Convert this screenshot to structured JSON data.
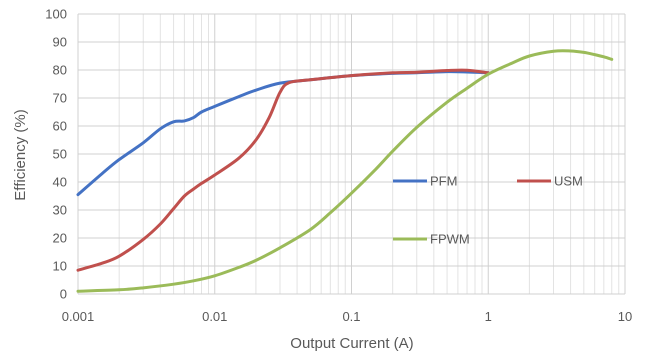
{
  "chart_data": {
    "type": "line",
    "title": "",
    "xlabel": "Output Current (A)",
    "ylabel": "Efficiency (%)",
    "xscale": "log",
    "xlim": [
      0.001,
      10
    ],
    "ylim": [
      0,
      100
    ],
    "x_ticks": [
      {
        "value": 0.001,
        "label": "0.001"
      },
      {
        "value": 0.01,
        "label": "0.01"
      },
      {
        "value": 0.1,
        "label": "0.1"
      },
      {
        "value": 1,
        "label": "1"
      },
      {
        "value": 10,
        "label": "10"
      }
    ],
    "y_ticks": [
      {
        "value": 0,
        "label": "0"
      },
      {
        "value": 10,
        "label": "10"
      },
      {
        "value": 20,
        "label": "20"
      },
      {
        "value": 30,
        "label": "30"
      },
      {
        "value": 40,
        "label": "40"
      },
      {
        "value": 50,
        "label": "50"
      },
      {
        "value": 60,
        "label": "60"
      },
      {
        "value": 70,
        "label": "70"
      },
      {
        "value": 80,
        "label": "80"
      },
      {
        "value": 90,
        "label": "90"
      },
      {
        "value": 100,
        "label": "100"
      }
    ],
    "grid": true,
    "legend_position": "inside-right",
    "series": [
      {
        "name": "PFM",
        "color": "#4472C4",
        "x": [
          0.001,
          0.0015,
          0.002,
          0.003,
          0.004,
          0.005,
          0.006,
          0.007,
          0.008,
          0.01,
          0.015,
          0.02,
          0.03,
          0.05,
          0.1,
          0.2,
          0.3,
          0.5,
          0.7,
          1
        ],
        "y": [
          35.5,
          43,
          48,
          54,
          59,
          61.5,
          61.8,
          63,
          65,
          67,
          70.5,
          72.8,
          75.3,
          76.5,
          78,
          78.8,
          79,
          79.4,
          79.3,
          79
        ]
      },
      {
        "name": "USM",
        "color": "#C0504D",
        "x": [
          0.001,
          0.0015,
          0.002,
          0.003,
          0.004,
          0.005,
          0.006,
          0.007,
          0.008,
          0.01,
          0.015,
          0.02,
          0.025,
          0.03,
          0.035,
          0.05,
          0.1,
          0.2,
          0.3,
          0.5,
          0.7,
          1
        ],
        "y": [
          8.5,
          11,
          13.5,
          19.5,
          25,
          30.5,
          35,
          37.5,
          39.5,
          42.5,
          48.5,
          55,
          63,
          72,
          75.5,
          76.5,
          78,
          79,
          79.2,
          79.8,
          79.9,
          79
        ]
      },
      {
        "name": "FPWM",
        "color": "#9BBB59",
        "x": [
          0.001,
          0.002,
          0.003,
          0.005,
          0.007,
          0.01,
          0.015,
          0.02,
          0.03,
          0.05,
          0.07,
          0.1,
          0.15,
          0.2,
          0.3,
          0.5,
          0.7,
          1,
          1.5,
          2,
          3,
          4,
          5,
          6,
          7,
          8
        ],
        "y": [
          1,
          1.5,
          2.2,
          3.5,
          4.7,
          6.5,
          9.5,
          12,
          16.5,
          23,
          29,
          36,
          44.5,
          51,
          59.5,
          68.5,
          73.5,
          78.5,
          82.5,
          85,
          86.7,
          86.8,
          86.3,
          85.5,
          84.7,
          83.8
        ]
      }
    ]
  }
}
